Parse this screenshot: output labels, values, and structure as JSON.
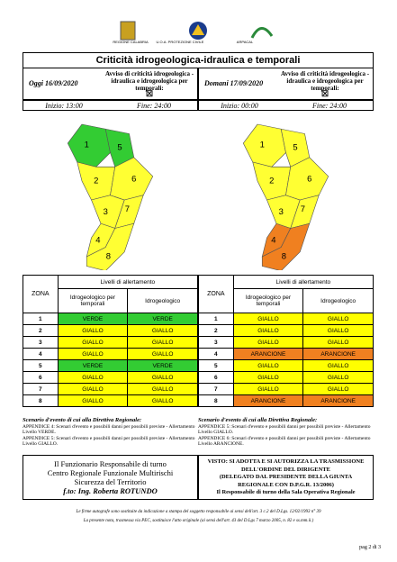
{
  "header": {
    "logos": [
      "REGIONE CALABRIA",
      "U.O.A. PROTEZIONE CIVILE",
      "ARPACAL"
    ],
    "title": "Criticità idrogeologica-idraulica e temporali"
  },
  "days": [
    {
      "date": "Oggi 16/09/2020",
      "notice": "Avviso di criticità idrogeologica - idraulica e idrogeologica per temporali:",
      "checkbox": "☒",
      "start": "Inizio: 13:00",
      "end": "Fine: 24:00",
      "map": {
        "zones": [
          "1",
          "2",
          "3",
          "4",
          "5",
          "6",
          "7",
          "8"
        ],
        "fills": [
          "#33cc33",
          "#ffff33",
          "#ffff33",
          "#ffff33",
          "#33cc33",
          "#ffff33",
          "#ffff33",
          "#ffff33"
        ]
      },
      "table": {
        "zone_header": "ZONA",
        "levels_header": "Livelli di allertamento",
        "columns": [
          "Idrogeologico per temporali",
          "Idrogeologico"
        ],
        "rows": [
          [
            "1",
            "VERDE",
            "VERDE"
          ],
          [
            "2",
            "GIALLO",
            "GIALLO"
          ],
          [
            "3",
            "GIALLO",
            "GIALLO"
          ],
          [
            "4",
            "GIALLO",
            "GIALLO"
          ],
          [
            "5",
            "VERDE",
            "VERDE"
          ],
          [
            "6",
            "GIALLO",
            "GIALLO"
          ],
          [
            "7",
            "GIALLO",
            "GIALLO"
          ],
          [
            "8",
            "GIALLO",
            "GIALLO"
          ]
        ],
        "fills": [
          [
            "#33cc33",
            "#33cc33"
          ],
          [
            "#ffff00",
            "#ffff00"
          ],
          [
            "#ffff00",
            "#ffff00"
          ],
          [
            "#ffff00",
            "#ffff00"
          ],
          [
            "#33cc33",
            "#33cc33"
          ],
          [
            "#ffff00",
            "#ffff00"
          ],
          [
            "#ffff00",
            "#ffff00"
          ],
          [
            "#ffff00",
            "#ffff00"
          ]
        ]
      },
      "scenario": {
        "heading": "Scenario d'evento di cui alla Direttiva Regionale:",
        "lines": [
          "APPENDICE 4: Scenari d'evento e possibili danni per possibili previste - Allertamento Livello VERDE.",
          "APPENDICE 5: Scenari d'evento e possibili danni per possibili previste - Allertamento Livello GIALLO."
        ]
      }
    },
    {
      "date": "Domani 17/09/2020",
      "notice": "Avviso di criticità idrogeologica - idraulica e idrogeologica per temporali:",
      "checkbox": "☒",
      "start": "Inizio: 00:00",
      "end": "Fine: 24:00",
      "map": {
        "zones": [
          "1",
          "2",
          "3",
          "4",
          "5",
          "6",
          "7",
          "8"
        ],
        "fills": [
          "#ffff33",
          "#ffff33",
          "#ffff33",
          "#f08020",
          "#ffff33",
          "#ffff33",
          "#ffff33",
          "#f08020"
        ]
      },
      "table": {
        "zone_header": "ZONA",
        "levels_header": "Livelli di allertamento",
        "columns": [
          "Idrogeologico per temporali",
          "Idrogeologico"
        ],
        "rows": [
          [
            "1",
            "GIALLO",
            "GIALLO"
          ],
          [
            "2",
            "GIALLO",
            "GIALLO"
          ],
          [
            "3",
            "GIALLO",
            "GIALLO"
          ],
          [
            "4",
            "ARANCIONE",
            "ARANCIONE"
          ],
          [
            "5",
            "GIALLO",
            "GIALLO"
          ],
          [
            "6",
            "GIALLO",
            "GIALLO"
          ],
          [
            "7",
            "GIALLO",
            "GIALLO"
          ],
          [
            "8",
            "ARANCIONE",
            "ARANCIONE"
          ]
        ],
        "fills": [
          [
            "#ffff00",
            "#ffff00"
          ],
          [
            "#ffff00",
            "#ffff00"
          ],
          [
            "#ffff00",
            "#ffff00"
          ],
          [
            "#f08020",
            "#f08020"
          ],
          [
            "#ffff00",
            "#ffff00"
          ],
          [
            "#ffff00",
            "#ffff00"
          ],
          [
            "#ffff00",
            "#ffff00"
          ],
          [
            "#f08020",
            "#f08020"
          ]
        ]
      },
      "scenario": {
        "heading": "Scenario d'evento di cui alla Direttiva Regionale:",
        "lines": [
          "APPENDICE 5: Scenari d'evento e possibili danni per possibili previste - Allertamento Livello GIALLO.",
          "APPENDICE 6: Scenari d'evento e possibili danni per possibili previste - Allertamento Livello ARANCIONE."
        ]
      }
    }
  ],
  "footer": {
    "left": [
      "Il Funzionario Responsabile di turno",
      "Centro Regionale Funzionale Multirischi",
      "Sicurezza del Territorio",
      "f.to: Ing. Roberta ROTUNDO"
    ],
    "right": [
      "VISTO: SI ADOTTA E SI AUTORIZZA LA TRASMISSIONE",
      "DELL'ORDINE DEL DIRIGENTE",
      "(DELEGATO DAL PRESIDENTE DELLA GIUNTA",
      "REGIONALE CON D.P.G.R. 13/2006)",
      "Il Responsabile di turno della Sala Operativa Regionale"
    ]
  },
  "notes": [
    "Le firme autografe sono sostituite da indicazione a stampa del soggetto responsabile ai sensi dell'art. 3 c.2 del D.Lgs. 12/02/1993 n° 39",
    "La presente nota, trasmessa via PEC, sostituisce l'atto originale (ai sensi dell'art. 43 del D.Lgs 7 marzo 2005, n. 82 e ss.mm.ii.)"
  ],
  "page": "pag 2 di 3"
}
